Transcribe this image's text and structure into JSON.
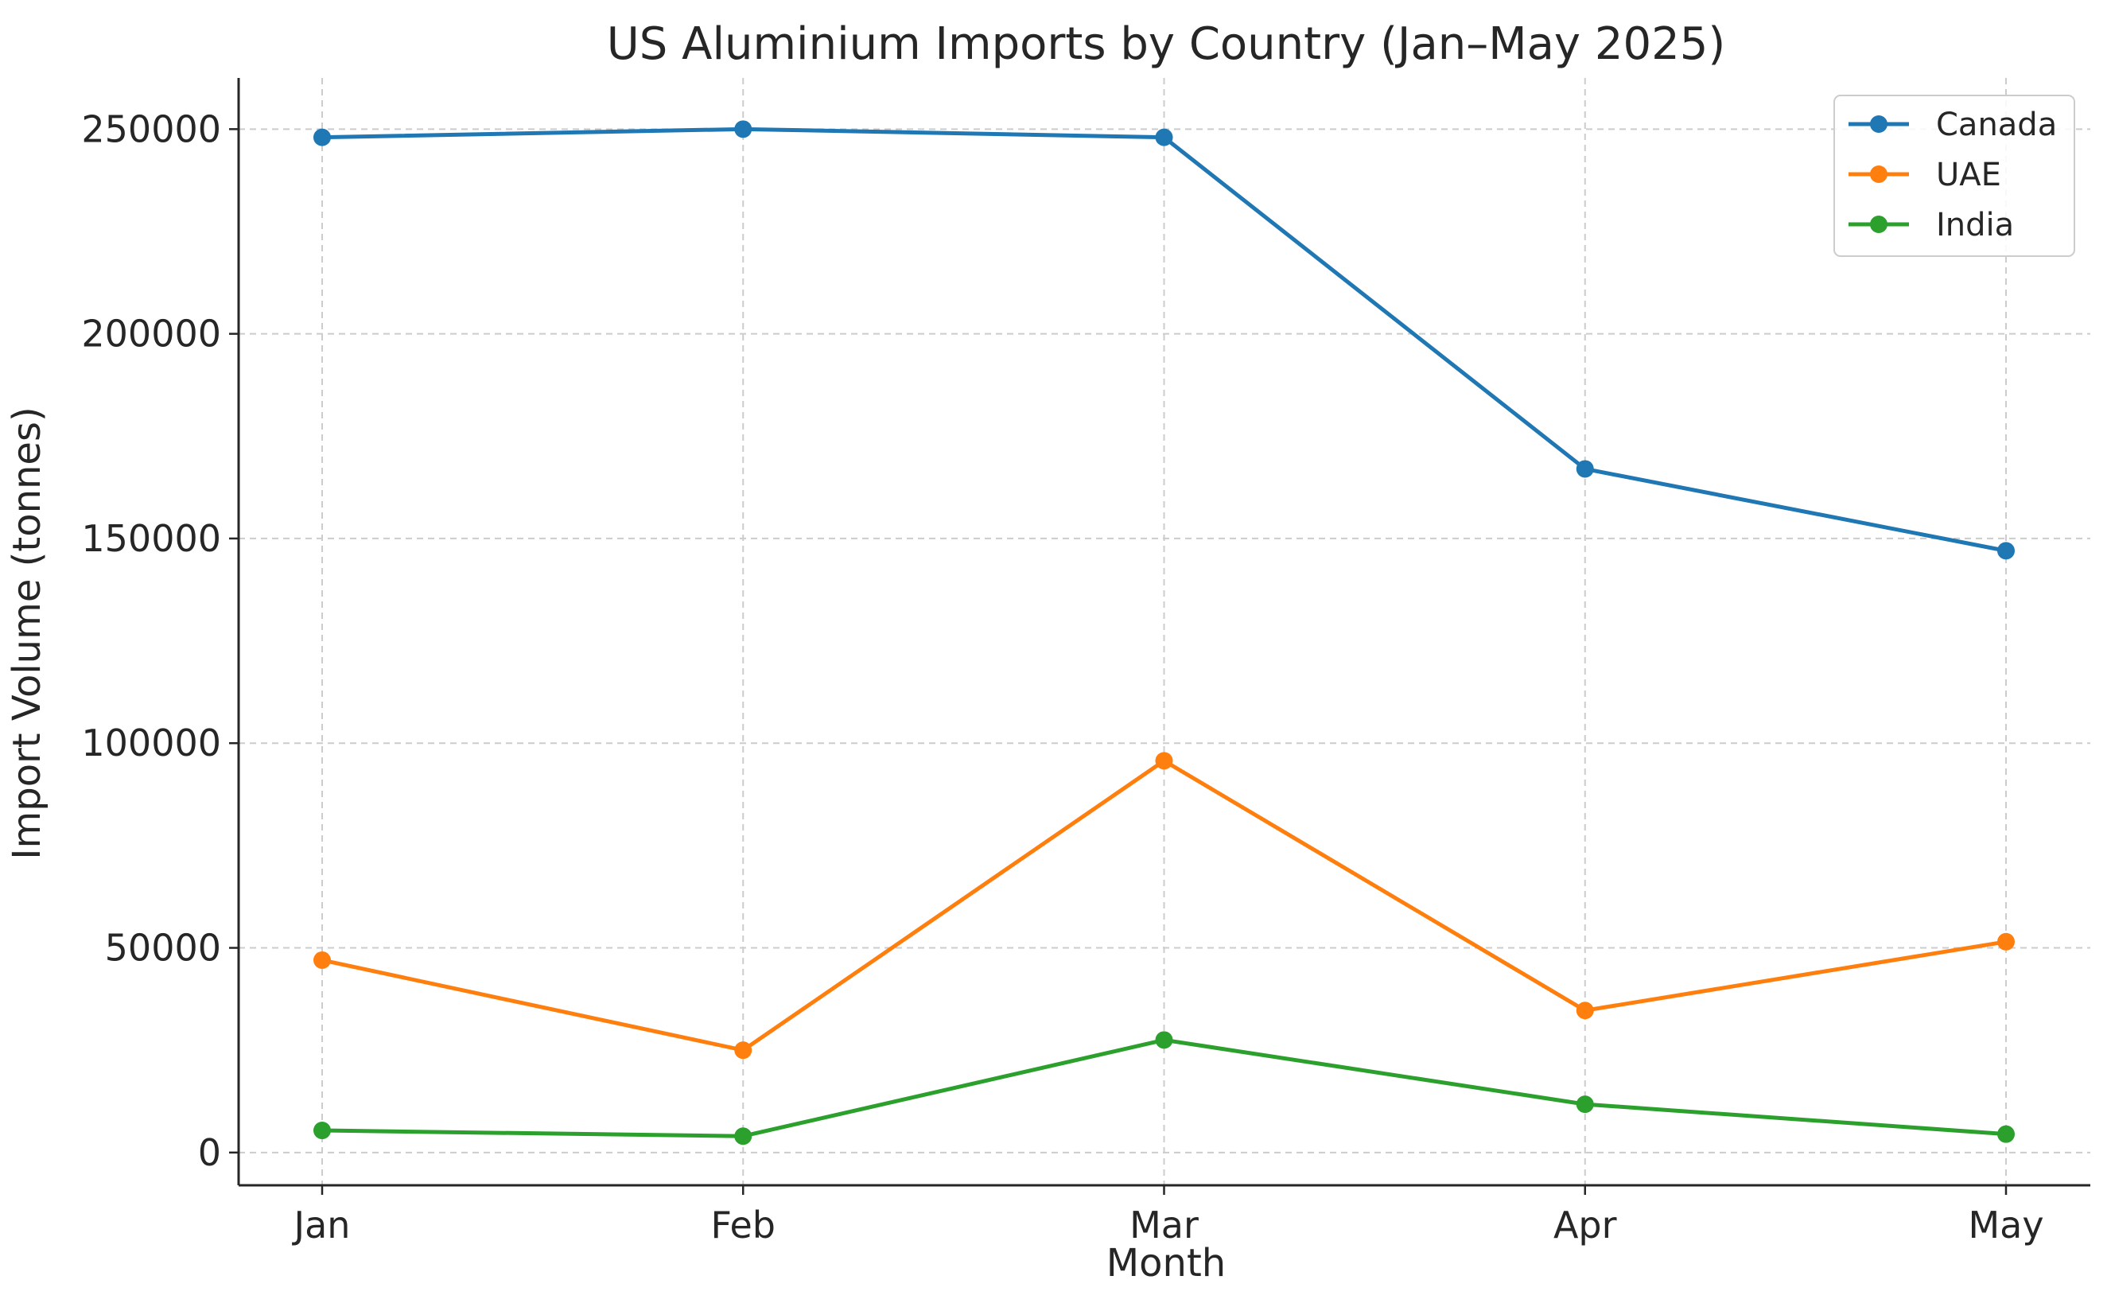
{
  "chart_data": {
    "type": "line",
    "title": "US Aluminium Imports by Country (Jan–May 2025)",
    "xlabel": "Month",
    "ylabel": "Import Volume (tonnes)",
    "categories": [
      "Jan",
      "Feb",
      "Mar",
      "Apr",
      "May"
    ],
    "series": [
      {
        "name": "Canada",
        "color": "#1f77b4",
        "values": [
          248000,
          250000,
          248000,
          167000,
          147000
        ]
      },
      {
        "name": "UAE",
        "color": "#ff7f0e",
        "values": [
          47000,
          25000,
          95700,
          34700,
          51500
        ]
      },
      {
        "name": "India",
        "color": "#2ca02c",
        "values": [
          5400,
          4000,
          27500,
          11800,
          4500
        ]
      }
    ],
    "ylim": [
      -8000,
      262500
    ],
    "yticks": [
      "0",
      "50000",
      "100000",
      "150000",
      "200000",
      "250000"
    ],
    "grid": true,
    "legend_position": "top-right"
  }
}
